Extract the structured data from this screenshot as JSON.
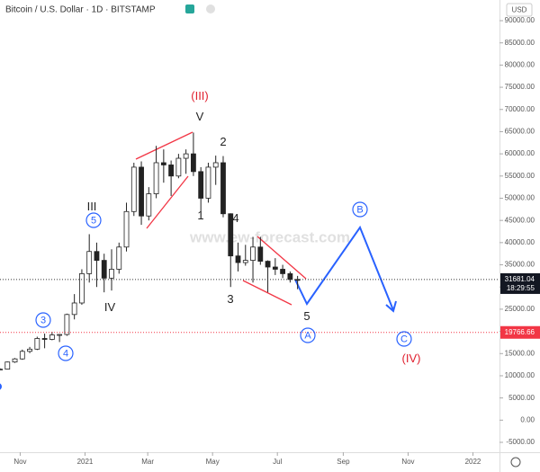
{
  "header": {
    "title": "Bitcoin / U.S. Dollar · 1D · BITSTAMP",
    "currency": "USD"
  },
  "watermark": "www.ew-forecast.com",
  "chart_data": {
    "type": "candlestick",
    "x": [
      0,
      7,
      14,
      21,
      28,
      35,
      42,
      49,
      56,
      63,
      70,
      77,
      84,
      91,
      98,
      105,
      112,
      119,
      126,
      133,
      140,
      147,
      154,
      161,
      168,
      175,
      182,
      189,
      196,
      203,
      210,
      217,
      224,
      231,
      238,
      245,
      252,
      259,
      266,
      273,
      280
    ],
    "open": [
      11400,
      11500,
      13100,
      13800,
      15500,
      16000,
      18400,
      18200,
      19200,
      19300,
      23800,
      26400,
      33000,
      38000,
      36000,
      32000,
      34000,
      39000,
      47000,
      57000,
      46000,
      51000,
      58000,
      57500,
      55000,
      59000,
      60000,
      56000,
      50000,
      57000,
      58000,
      46500,
      37000,
      35500,
      36000,
      39000,
      35800,
      34500,
      34000,
      33000,
      31700
    ],
    "high": [
      11700,
      13200,
      14000,
      15900,
      16500,
      18800,
      19500,
      19900,
      19400,
      24000,
      28400,
      34000,
      41900,
      40000,
      37500,
      38500,
      40000,
      49000,
      58000,
      58300,
      52500,
      61800,
      61000,
      58500,
      60000,
      61000,
      64800,
      57000,
      58000,
      59600,
      59500,
      46600,
      40000,
      39500,
      41300,
      41300,
      36000,
      36500,
      35000,
      33500,
      32500
    ],
    "low": [
      11200,
      11400,
      12900,
      13600,
      15100,
      15800,
      16200,
      18000,
      17600,
      19000,
      22700,
      26000,
      31000,
      30000,
      28800,
      29200,
      33000,
      38000,
      46000,
      44000,
      45000,
      50000,
      53500,
      50500,
      54500,
      55500,
      55000,
      47000,
      49000,
      53000,
      45700,
      30000,
      33500,
      34800,
      31000,
      35000,
      28800,
      32700,
      32000,
      31000,
      29500
    ],
    "close": [
      11500,
      13100,
      13800,
      15500,
      16000,
      18400,
      18200,
      19200,
      19300,
      23800,
      26400,
      33000,
      38000,
      36000,
      32000,
      34000,
      39000,
      47000,
      57000,
      46000,
      51000,
      58000,
      57500,
      55000,
      59000,
      60000,
      56000,
      50000,
      57000,
      58000,
      46500,
      37000,
      35500,
      36000,
      39000,
      35800,
      34500,
      34000,
      33000,
      31700,
      31681.04
    ],
    "xlim": [
      0,
      470
    ],
    "xticks": [
      {
        "value": 19,
        "label": "Nov"
      },
      {
        "value": 80,
        "label": "2021"
      },
      {
        "value": 139,
        "label": "Mar"
      },
      {
        "value": 200,
        "label": "May"
      },
      {
        "value": 261,
        "label": "Jul"
      },
      {
        "value": 323,
        "label": "Sep"
      },
      {
        "value": 384,
        "label": "Nov"
      },
      {
        "value": 445,
        "label": "2022"
      }
    ],
    "ylim": [
      -7225,
      94660
    ],
    "yticks": [
      {
        "value": 90000,
        "label": "90000.00"
      },
      {
        "value": 85000,
        "label": "85000.00"
      },
      {
        "value": 80000,
        "label": "80000.00"
      },
      {
        "value": 75000,
        "label": "75000.00"
      },
      {
        "value": 70000,
        "label": "70000.00"
      },
      {
        "value": 65000,
        "label": "65000.00"
      },
      {
        "value": 60000,
        "label": "60000.00"
      },
      {
        "value": 55000,
        "label": "55000.00"
      },
      {
        "value": 50000,
        "label": "50000.00"
      },
      {
        "value": 45000,
        "label": "45000.00"
      },
      {
        "value": 40000,
        "label": "40000.00"
      },
      {
        "value": 35000,
        "label": "35000.00"
      },
      {
        "value": 30000,
        "label": "30000.00"
      },
      {
        "value": 25000,
        "label": "25000.00"
      },
      {
        "value": 20000,
        "label": "20000.00"
      },
      {
        "value": 15000,
        "label": "15000.00"
      },
      {
        "value": 10000,
        "label": "10000.00"
      },
      {
        "value": 5000,
        "label": "5000.00"
      },
      {
        "value": 0,
        "label": "0.00"
      },
      {
        "value": -5000,
        "label": "-5000.00"
      }
    ],
    "last_price": 31681.04,
    "countdown": "18:29:55",
    "level": 19766.66,
    "annotations": [
      "(III)",
      "V",
      "2",
      "1",
      "4",
      "III",
      "5",
      "3",
      "4",
      "IV",
      "3",
      "5",
      "A",
      "B",
      "C",
      "(IV)"
    ]
  }
}
